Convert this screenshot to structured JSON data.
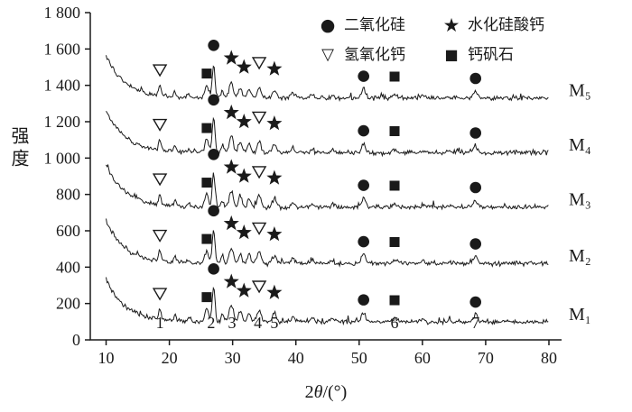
{
  "figure": {
    "background": "#ffffff",
    "line_color": "#1a1a1a",
    "x_axis_label_prefix": "2",
    "x_axis_label_theta": "θ",
    "x_axis_label_suffix": "/(°)"
  },
  "chart_data": {
    "type": "line",
    "title": "",
    "xlabel": "2θ/(°)",
    "ylabel": "强度",
    "xlim": [
      7.5,
      82
    ],
    "ylim": [
      0,
      1800
    ],
    "grid": false,
    "legend_position": "top-inside",
    "x_ticks": [
      10,
      20,
      30,
      40,
      50,
      60,
      70,
      80
    ],
    "x_tick_labels": [
      "10",
      "20",
      "30",
      "40",
      "50",
      "60",
      "70",
      "80"
    ],
    "y_ticks": [
      0,
      200,
      400,
      600,
      800,
      1000,
      1200,
      1400,
      1600,
      1800
    ],
    "y_tick_labels": [
      "0",
      "200",
      "400",
      "600",
      "800",
      "1 000",
      "1 200",
      "1 400",
      "1 600",
      "1 800"
    ],
    "legend": [
      {
        "symbol": "filled-circle",
        "glyph": "●",
        "label": "二氧化硅"
      },
      {
        "symbol": "filled-star",
        "glyph": "★",
        "label": "水化硅酸钙"
      },
      {
        "symbol": "open-triangle-down",
        "glyph": "▽",
        "label": "氢氧化钙"
      },
      {
        "symbol": "filled-square",
        "glyph": "■",
        "label": "钙矾石"
      }
    ],
    "series": [
      {
        "name": "M1",
        "display": "M₁",
        "baseline": 100
      },
      {
        "name": "M2",
        "display": "M₂",
        "baseline": 420
      },
      {
        "name": "M3",
        "display": "M₃",
        "baseline": 730
      },
      {
        "name": "M4",
        "display": "M₄",
        "baseline": 1030
      },
      {
        "name": "M5",
        "display": "M₅",
        "baseline": 1330
      }
    ],
    "background_decay": {
      "amplitude": 235,
      "tau": 3.0
    },
    "noise_amplitude": 12,
    "peaks": [
      {
        "center": 18.5,
        "height": 55,
        "width": 0.3
      },
      {
        "center": 20.9,
        "height": 34,
        "width": 0.28
      },
      {
        "center": 23.1,
        "height": 18,
        "width": 0.3
      },
      {
        "center": 25.9,
        "height": 70,
        "width": 0.4
      },
      {
        "center": 27.0,
        "height": 185,
        "width": 0.32
      },
      {
        "center": 28.4,
        "height": 42,
        "width": 0.3
      },
      {
        "center": 29.8,
        "height": 88,
        "width": 0.45
      },
      {
        "center": 31.2,
        "height": 55,
        "width": 0.38
      },
      {
        "center": 32.6,
        "height": 48,
        "width": 0.38
      },
      {
        "center": 34.2,
        "height": 65,
        "width": 0.42
      },
      {
        "center": 36.6,
        "height": 45,
        "width": 0.45
      },
      {
        "center": 39.5,
        "height": 27,
        "width": 0.4
      },
      {
        "center": 42.5,
        "height": 16,
        "width": 0.4
      },
      {
        "center": 45.8,
        "height": 14,
        "width": 0.4
      },
      {
        "center": 50.7,
        "height": 52,
        "width": 0.45
      },
      {
        "center": 55.6,
        "height": 20,
        "width": 0.5
      },
      {
        "center": 60.1,
        "height": 12,
        "width": 0.4
      },
      {
        "center": 64.2,
        "height": 10,
        "width": 0.4
      },
      {
        "center": 68.4,
        "height": 42,
        "width": 0.42
      }
    ],
    "phase_markers": [
      {
        "symbol": "open-triangle-down",
        "x": 18.5,
        "dy": 155
      },
      {
        "symbol": "filled-square",
        "x": 25.9,
        "dy": 135
      },
      {
        "symbol": "filled-circle",
        "x": 27.0,
        "dy": 290
      },
      {
        "symbol": "filled-star",
        "x": 29.8,
        "dy": 220
      },
      {
        "symbol": "filled-star",
        "x": 31.8,
        "dy": 170
      },
      {
        "symbol": "open-triangle-down",
        "x": 34.2,
        "dy": 195
      },
      {
        "symbol": "filled-star",
        "x": 36.6,
        "dy": 160
      },
      {
        "symbol": "filled-circle",
        "x": 50.7,
        "dy": 120
      },
      {
        "symbol": "filled-square",
        "x": 55.6,
        "dy": 118
      },
      {
        "symbol": "filled-circle",
        "x": 68.4,
        "dy": 108
      }
    ],
    "peak_index_labels": [
      {
        "label": "1",
        "x": 18.5
      },
      {
        "label": "2",
        "x": 26.6
      },
      {
        "label": "3",
        "x": 29.9
      },
      {
        "label": "4",
        "x": 34.0
      },
      {
        "label": "5",
        "x": 36.6
      },
      {
        "label": "6",
        "x": 55.6
      },
      {
        "label": "7",
        "x": 68.4
      }
    ]
  }
}
